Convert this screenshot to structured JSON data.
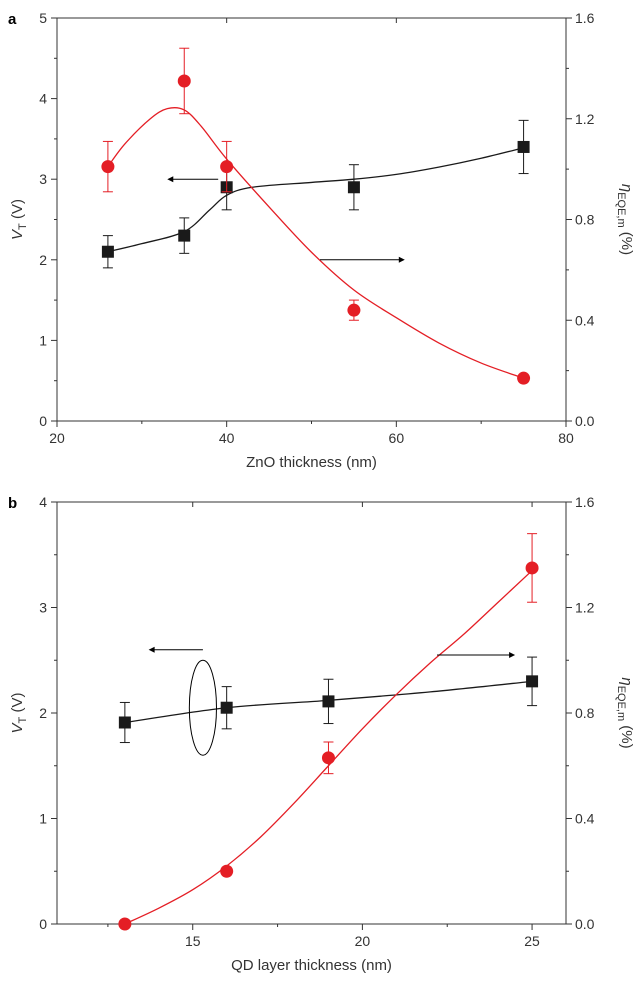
{
  "colors": {
    "series_vt": "#1a1a1a",
    "series_eqe": "#e41e25",
    "axis": "#333333"
  },
  "chart_data": [
    {
      "type": "scatter",
      "panel_label": "a",
      "xlabel": "ZnO thickness (nm)",
      "ylabel_left": {
        "sym": "V",
        "sub": "T",
        "unit": " (V)"
      },
      "ylabel_right": {
        "sym": "η",
        "sub": "EQE,m",
        "unit": " (%)"
      },
      "xlim": [
        20,
        80
      ],
      "xticks": [
        20,
        40,
        60,
        80
      ],
      "ylim_left": [
        0,
        5
      ],
      "yticks_left": [
        0,
        1,
        2,
        3,
        4,
        5
      ],
      "ylim_right": [
        0,
        1.6
      ],
      "yticks_right": [
        "0.0",
        "0.4",
        "0.8",
        "1.2",
        "1.6"
      ],
      "series": [
        {
          "axis": "left",
          "marker": "square",
          "x": [
            26,
            35,
            40,
            55,
            75
          ],
          "y": [
            2.1,
            2.3,
            2.9,
            2.9,
            3.4
          ],
          "yerr": [
            0.2,
            0.22,
            0.28,
            0.28,
            0.33
          ],
          "fit": [
            [
              26,
              2.1
            ],
            [
              30,
              2.2
            ],
            [
              35,
              2.35
            ],
            [
              38,
              2.62
            ],
            [
              40,
              2.8
            ],
            [
              43,
              2.9
            ],
            [
              50,
              2.96
            ],
            [
              55,
              3.0
            ],
            [
              60,
              3.06
            ],
            [
              65,
              3.15
            ],
            [
              70,
              3.26
            ],
            [
              75,
              3.39
            ]
          ]
        },
        {
          "axis": "right",
          "marker": "circle",
          "x": [
            26,
            35,
            40,
            55,
            75
          ],
          "y": [
            1.01,
            1.35,
            1.01,
            0.44,
            0.17
          ],
          "yerr": [
            0.1,
            0.13,
            0.1,
            0.04,
            0.0
          ],
          "fit": [
            [
              26,
              1.01
            ],
            [
              28,
              1.1
            ],
            [
              31,
              1.2
            ],
            [
              33,
              1.24
            ],
            [
              35,
              1.235
            ],
            [
              37,
              1.17
            ],
            [
              40,
              1.04
            ],
            [
              45,
              0.85
            ],
            [
              50,
              0.67
            ],
            [
              55,
              0.52
            ],
            [
              60,
              0.41
            ],
            [
              65,
              0.31
            ],
            [
              70,
              0.23
            ],
            [
              75,
              0.17
            ]
          ]
        }
      ],
      "annotations": [
        {
          "type": "arrow",
          "from": [
            39,
            3.0
          ],
          "to": [
            33,
            3.0
          ],
          "axis": "left"
        },
        {
          "type": "arrow",
          "from": [
            51,
            0.64
          ],
          "to": [
            61,
            0.64
          ],
          "axis": "right"
        }
      ]
    },
    {
      "type": "scatter",
      "panel_label": "b",
      "xlabel": "QD layer thickness (nm)",
      "ylabel_left": {
        "sym": "V",
        "sub": "T",
        "unit": " (V)"
      },
      "ylabel_right": {
        "sym": "η",
        "sub": "EQE,m",
        "unit": " (%)"
      },
      "xlim": [
        11,
        26
      ],
      "xticks": [
        15,
        20,
        25
      ],
      "ylim_left": [
        0,
        4
      ],
      "yticks_left": [
        0,
        1,
        2,
        3,
        4
      ],
      "ylim_right": [
        0,
        1.6
      ],
      "yticks_right": [
        "0.0",
        "0.4",
        "0.8",
        "1.2",
        "1.6"
      ],
      "series": [
        {
          "axis": "left",
          "marker": "square",
          "x": [
            13,
            16,
            19,
            25
          ],
          "y": [
            1.91,
            2.05,
            2.11,
            2.3
          ],
          "yerr": [
            0.19,
            0.2,
            0.21,
            0.23
          ],
          "fit": [
            [
              13,
              1.91
            ],
            [
              16,
              2.05
            ],
            [
              19,
              2.12
            ],
            [
              22,
              2.2
            ],
            [
              25,
              2.3
            ]
          ]
        },
        {
          "axis": "right",
          "marker": "circle",
          "x": [
            13,
            16,
            19,
            25
          ],
          "y": [
            0.0,
            0.2,
            0.63,
            1.35
          ],
          "yerr": [
            0.0,
            0.0,
            0.06,
            0.13
          ],
          "fit": [
            [
              13,
              0.0
            ],
            [
              14,
              0.06
            ],
            [
              15,
              0.13
            ],
            [
              16,
              0.22
            ],
            [
              17,
              0.33
            ],
            [
              18,
              0.46
            ],
            [
              19,
              0.6
            ],
            [
              20,
              0.74
            ],
            [
              21,
              0.87
            ],
            [
              22,
              0.99
            ],
            [
              23,
              1.1
            ],
            [
              24,
              1.22
            ],
            [
              25,
              1.34
            ]
          ]
        }
      ],
      "annotations": [
        {
          "type": "arrow",
          "from": [
            15.3,
            2.6
          ],
          "to": [
            13.7,
            2.6
          ],
          "axis": "left"
        },
        {
          "type": "ellipse",
          "center": [
            15.3,
            2.05
          ],
          "rx_data": 0.4,
          "ry_data": 0.45,
          "axis": "left"
        },
        {
          "type": "arrow",
          "from": [
            22.2,
            1.02
          ],
          "to": [
            24.5,
            1.02
          ],
          "axis": "right"
        }
      ]
    }
  ]
}
